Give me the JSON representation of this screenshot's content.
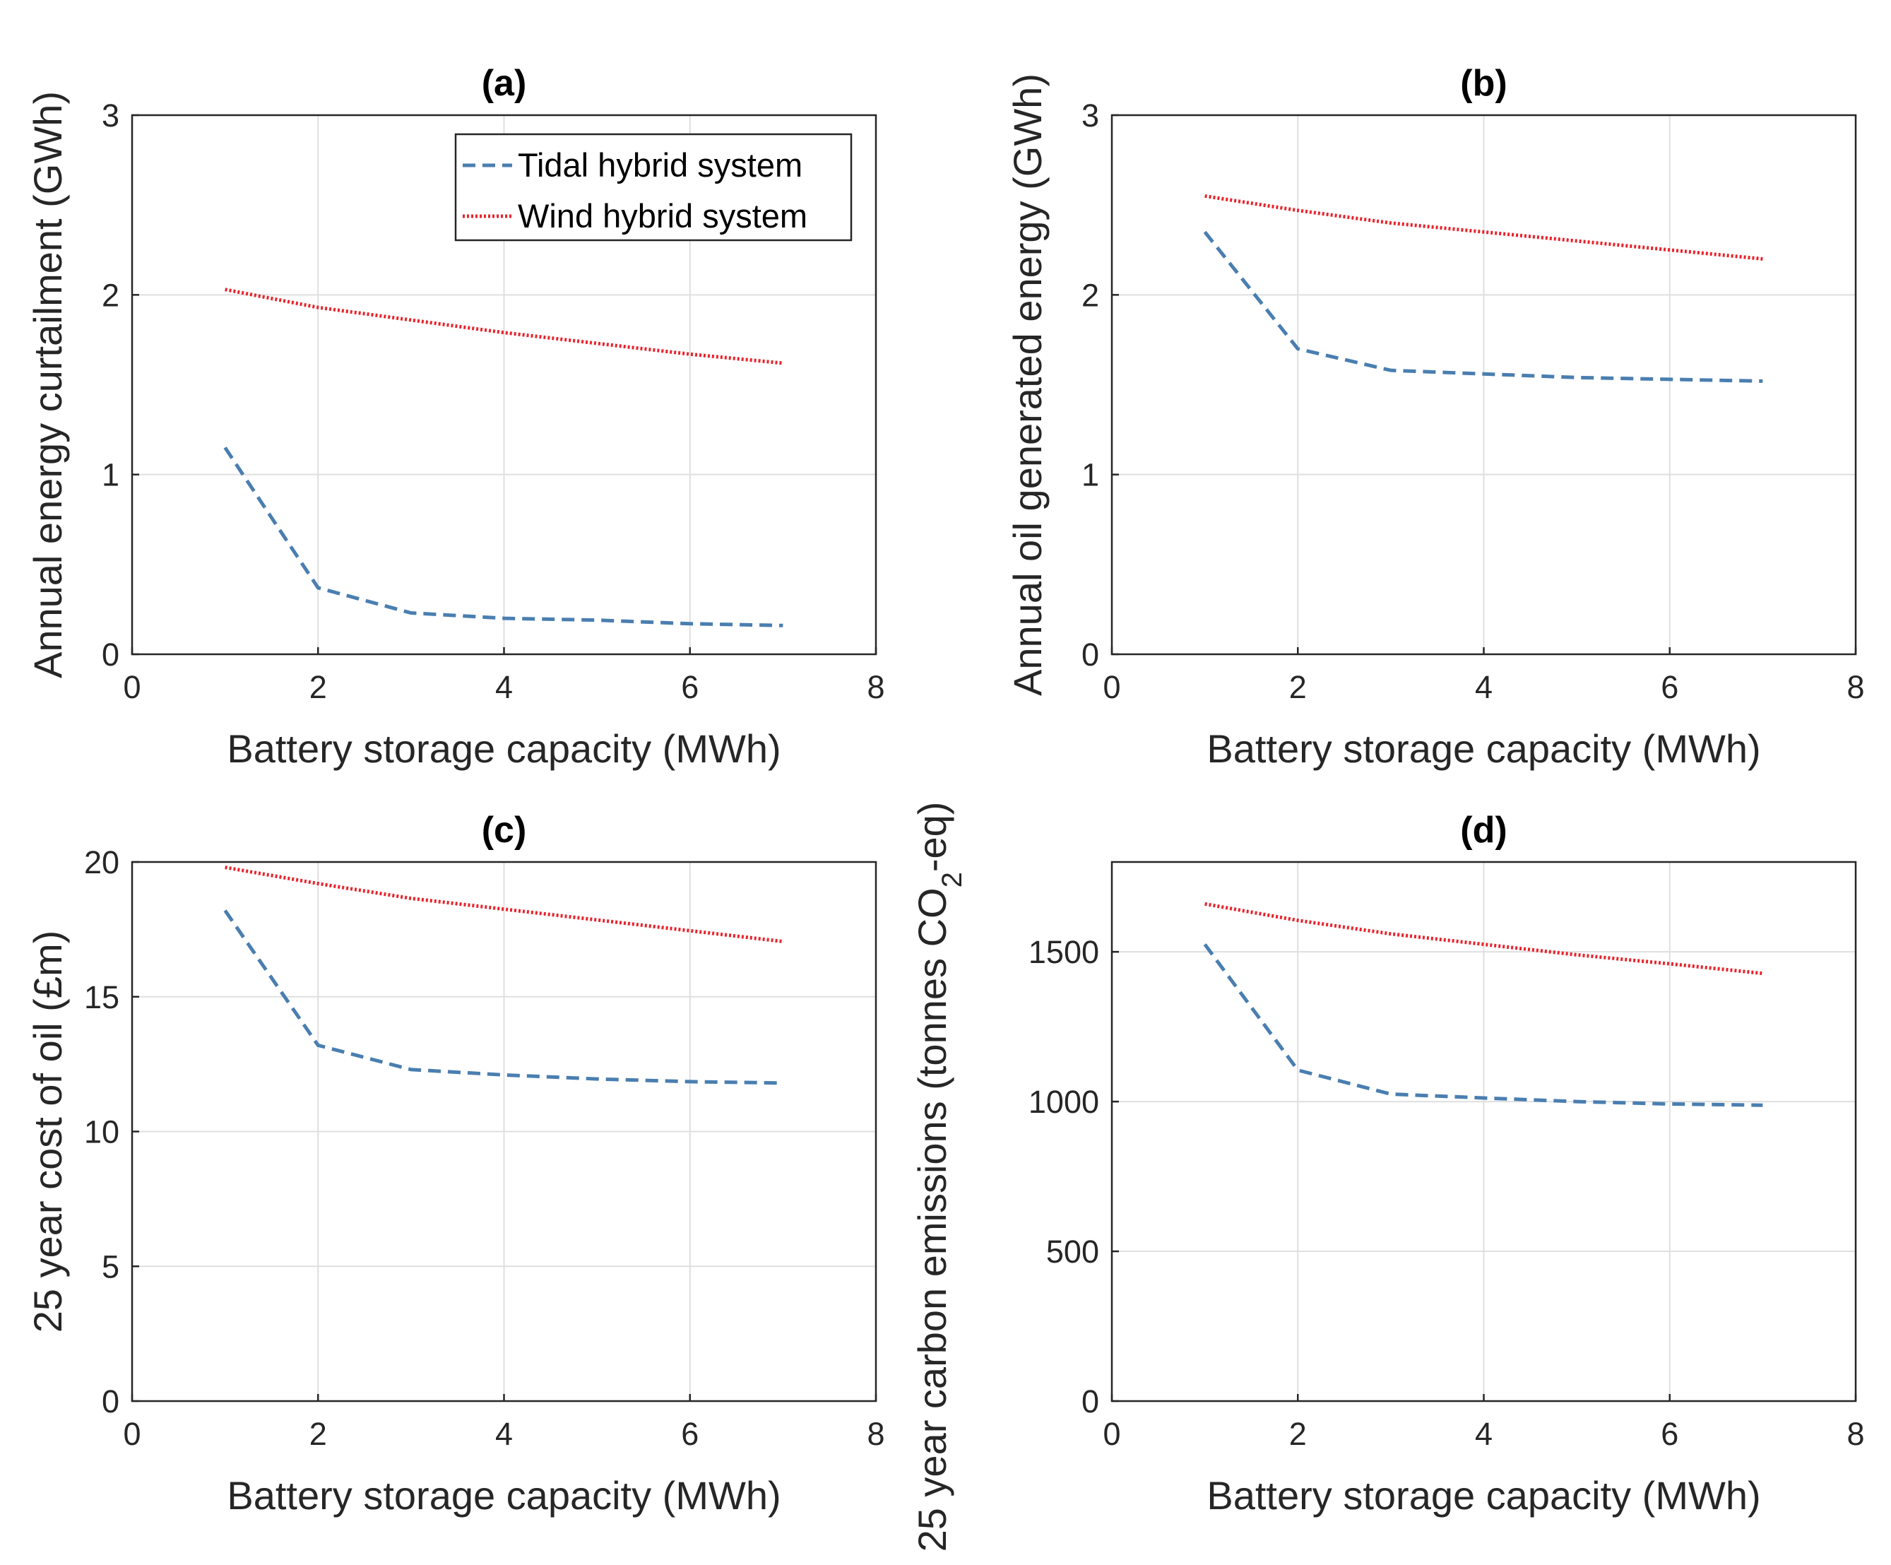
{
  "chart_data": [
    {
      "type": "line",
      "panel": "(a)",
      "title": "(a)",
      "xlabel": "Battery storage capacity (MWh)",
      "ylabel": "Annual energy curtailment (GWh)",
      "xlim": [
        0,
        8
      ],
      "ylim": [
        0,
        3
      ],
      "xticks": [
        0,
        2,
        4,
        6,
        8
      ],
      "yticks": [
        0,
        1,
        2,
        3
      ],
      "grid": true,
      "legend_position": "top-right",
      "x": [
        1,
        2,
        3,
        4,
        5,
        6,
        7
      ],
      "series": [
        {
          "name": "Tidal hybrid system",
          "style": "dashed",
          "color": "#4a7eb0",
          "values": [
            1.15,
            0.37,
            0.23,
            0.2,
            0.19,
            0.17,
            0.16
          ]
        },
        {
          "name": "Wind hybrid system",
          "style": "dotted",
          "color": "#e8242c",
          "values": [
            2.03,
            1.93,
            1.86,
            1.79,
            1.73,
            1.67,
            1.62
          ]
        }
      ]
    },
    {
      "type": "line",
      "panel": "(b)",
      "title": "(b)",
      "xlabel": "Battery storage capacity (MWh)",
      "ylabel": "Annual oil generated energy (GWh)",
      "xlim": [
        0,
        8
      ],
      "ylim": [
        0,
        3
      ],
      "xticks": [
        0,
        2,
        4,
        6,
        8
      ],
      "yticks": [
        0,
        1,
        2,
        3
      ],
      "grid": true,
      "x": [
        1,
        2,
        3,
        4,
        5,
        6,
        7
      ],
      "series": [
        {
          "name": "Tidal hybrid system",
          "style": "dashed",
          "color": "#4a7eb0",
          "values": [
            2.35,
            1.7,
            1.58,
            1.56,
            1.54,
            1.53,
            1.52
          ]
        },
        {
          "name": "Wind hybrid system",
          "style": "dotted",
          "color": "#e8242c",
          "values": [
            2.55,
            2.47,
            2.4,
            2.35,
            2.3,
            2.25,
            2.2
          ]
        }
      ]
    },
    {
      "type": "line",
      "panel": "(c)",
      "title": "(c)",
      "xlabel": "Battery storage capacity (MWh)",
      "ylabel": "25 year cost of oil (£m)",
      "xlim": [
        0,
        8
      ],
      "ylim": [
        0,
        20
      ],
      "xticks": [
        0,
        2,
        4,
        6,
        8
      ],
      "yticks": [
        0,
        5,
        10,
        15,
        20
      ],
      "grid": true,
      "x": [
        1,
        2,
        3,
        4,
        5,
        6,
        7
      ],
      "series": [
        {
          "name": "Tidal hybrid system",
          "style": "dashed",
          "color": "#4a7eb0",
          "values": [
            18.2,
            13.2,
            12.3,
            12.1,
            11.95,
            11.85,
            11.8
          ]
        },
        {
          "name": "Wind hybrid system",
          "style": "dotted",
          "color": "#e8242c",
          "values": [
            19.8,
            19.2,
            18.65,
            18.25,
            17.85,
            17.45,
            17.05
          ]
        }
      ]
    },
    {
      "type": "line",
      "panel": "(d)",
      "title": "(d)",
      "xlabel": "Battery storage capacity (MWh)",
      "ylabel": "25 year carbon emissions (tonnes CO",
      "ylabel_subscript": "2",
      "ylabel_suffix": "-eq)",
      "xlim": [
        0,
        8
      ],
      "ylim": [
        0,
        1800
      ],
      "xticks": [
        0,
        2,
        4,
        6,
        8
      ],
      "yticks": [
        0,
        500,
        1000,
        1500
      ],
      "grid": true,
      "x": [
        1,
        2,
        3,
        4,
        5,
        6,
        7
      ],
      "series": [
        {
          "name": "Tidal hybrid system",
          "style": "dashed",
          "color": "#4a7eb0",
          "values": [
            1525,
            1105,
            1025,
            1012,
            1000,
            992,
            988
          ]
        },
        {
          "name": "Wind hybrid system",
          "style": "dotted",
          "color": "#e8242c",
          "values": [
            1660,
            1605,
            1560,
            1525,
            1490,
            1460,
            1428
          ]
        }
      ]
    }
  ]
}
